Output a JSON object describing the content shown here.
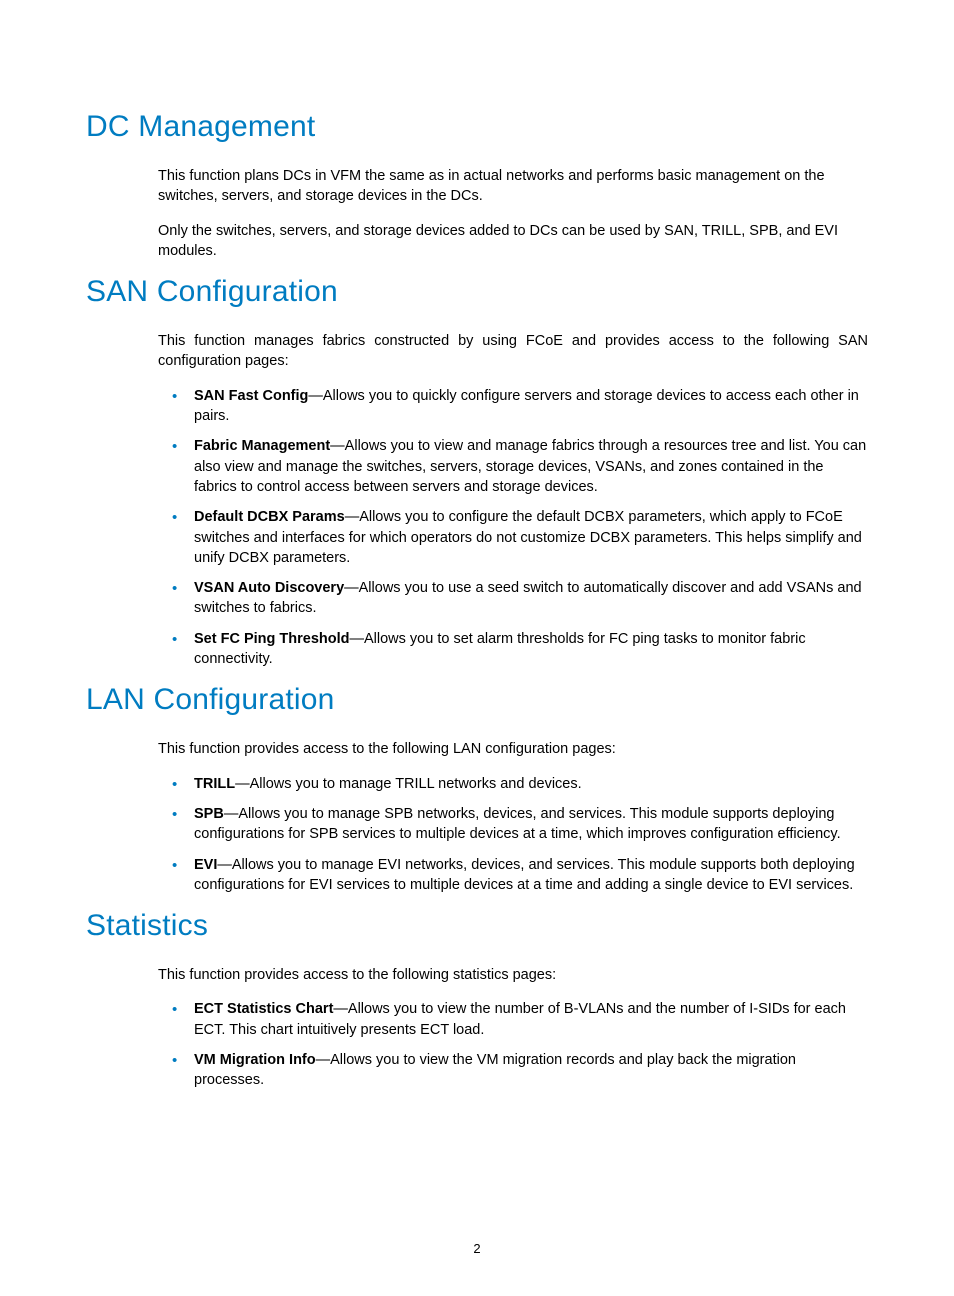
{
  "colors": {
    "heading": "#007cc1",
    "bullet": "#007cc1",
    "text": "#000000",
    "background": "#ffffff"
  },
  "typography": {
    "heading_fontsize": 30,
    "body_fontsize": 14.5,
    "font_family": "Arial"
  },
  "page_number": "2",
  "sections": {
    "dc": {
      "title": "DC Management",
      "p1": "This function plans DCs in VFM the same as in actual networks and performs basic management on the switches, servers, and storage devices in the DCs.",
      "p2": "Only the switches, servers, and storage devices added to DCs can be used by SAN, TRILL, SPB, and EVI modules."
    },
    "san": {
      "title": "SAN Configuration",
      "intro": "This function manages fabrics constructed by using FCoE and provides access to the following SAN configuration pages:",
      "items": {
        "0": {
          "term": "SAN Fast Config",
          "desc": "—Allows you to quickly configure servers and storage devices to access each other in pairs."
        },
        "1": {
          "term": "Fabric Management",
          "desc": "—Allows you to view and manage fabrics through a resources tree and list. You can also view and manage the switches, servers, storage devices, VSANs, and zones contained in the fabrics to control access between servers and storage devices."
        },
        "2": {
          "term": "Default DCBX Params",
          "desc": "—Allows you to configure the default DCBX parameters, which apply to FCoE switches and interfaces for which operators do not customize DCBX parameters. This helps simplify and unify DCBX parameters."
        },
        "3": {
          "term": "VSAN Auto Discovery",
          "desc": "—Allows you to use a seed switch to automatically discover and add VSANs and switches to fabrics."
        },
        "4": {
          "term": "Set FC Ping Threshold",
          "desc": "—Allows you to set alarm thresholds for FC ping tasks to monitor fabric connectivity."
        }
      }
    },
    "lan": {
      "title": "LAN Configuration",
      "intro": "This function provides access to the following LAN configuration pages:",
      "items": {
        "0": {
          "term": "TRILL",
          "desc": "—Allows you to manage TRILL networks and devices."
        },
        "1": {
          "term": "SPB",
          "desc": "—Allows you to manage SPB networks, devices, and services. This module supports deploying configurations for SPB services to multiple devices at a time, which improves configuration efficiency."
        },
        "2": {
          "term": "EVI",
          "desc": "—Allows you to manage EVI networks, devices, and services. This module supports both deploying configurations for EVI services to multiple devices at a time and adding a single device to EVI services."
        }
      }
    },
    "stats": {
      "title": "Statistics",
      "intro": "This function provides access to the following statistics pages:",
      "items": {
        "0": {
          "term": "ECT Statistics Chart",
          "desc": "—Allows you to view the number of B-VLANs and the number of I-SIDs for each ECT. This chart intuitively presents ECT load."
        },
        "1": {
          "term": "VM Migration Info",
          "desc": "—Allows you to view the VM migration records and play back the migration processes."
        }
      }
    }
  }
}
